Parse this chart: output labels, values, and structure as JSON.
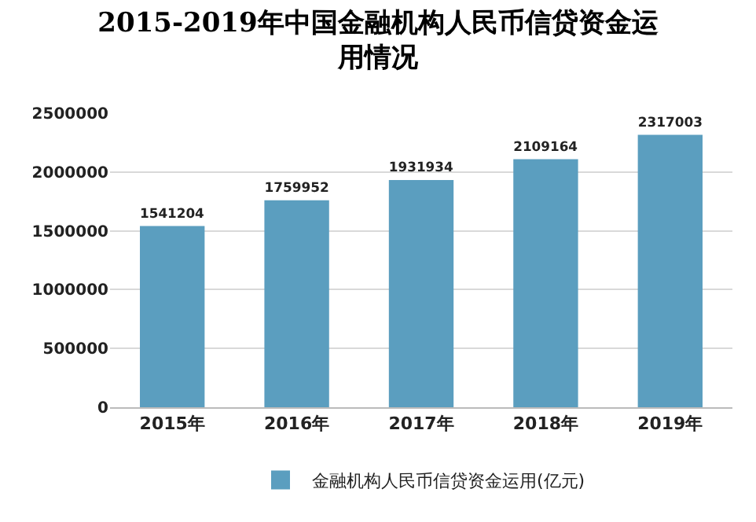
{
  "chart_data": {
    "type": "bar",
    "title": "2015-2019年中国金融机构人民币信贷资金运用情况",
    "categories": [
      "2015年",
      "2016年",
      "2017年",
      "2018年",
      "2019年"
    ],
    "series": [
      {
        "name": "金融机构人民币信贷资金运用(亿元)",
        "color": "#5b9ebf",
        "values": [
          1541204,
          1759952,
          1931934,
          2109164,
          2317003
        ]
      }
    ],
    "ylim": [
      0,
      2500000
    ],
    "yticks": [
      0,
      500000,
      1000000,
      1500000,
      2000000,
      2500000
    ],
    "grid": "y",
    "legend": "bottom",
    "data_labels": true
  }
}
